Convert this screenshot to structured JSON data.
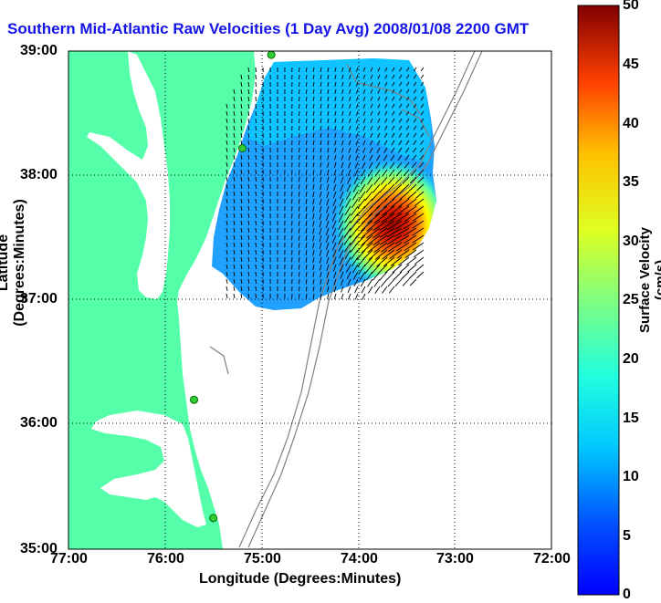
{
  "title": "Southern Mid-Atlantic Raw Velocities (1 Day Avg) 2008/01/08 2200 GMT",
  "x_axis": {
    "label": "Longitude (Degrees:Minutes)",
    "ticks": [
      "77:00",
      "76:00",
      "75:00",
      "74:00",
      "73:00",
      "72:00"
    ]
  },
  "y_axis": {
    "label": "Latitude (Degrees:Minutes)",
    "ticks": [
      "39:00",
      "38:00",
      "37:00",
      "36:00",
      "35:00"
    ]
  },
  "colorbar": {
    "label": "Surface Velocity (cm/s)",
    "ticks": [
      "50",
      "45",
      "40",
      "35",
      "30",
      "25",
      "20",
      "15",
      "10",
      "5",
      "0"
    ],
    "colormap": "jet"
  },
  "colors": {
    "land": "#55ffaa",
    "ocean": "#ffffff",
    "title": "#1414e6",
    "station": "#33cc33"
  },
  "map": {
    "lon_range": [
      -77,
      -72
    ],
    "lat_range": [
      35,
      39
    ],
    "grid": true,
    "stations": [
      {
        "lon": -74.9,
        "lat": 38.97
      },
      {
        "lon": -75.2,
        "lat": 38.22
      },
      {
        "lon": -75.7,
        "lat": 36.2
      },
      {
        "lon": -75.5,
        "lat": 35.25
      }
    ]
  }
}
